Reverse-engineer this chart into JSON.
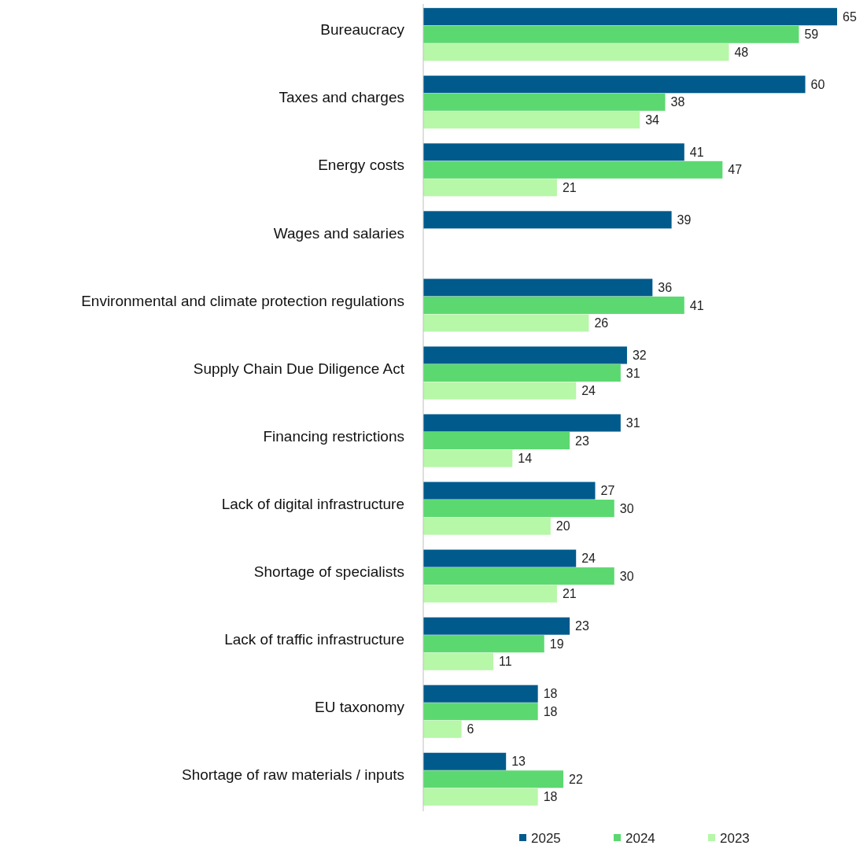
{
  "chart_data": {
    "type": "bar",
    "orientation": "horizontal",
    "categories": [
      "Bureaucracy",
      "Taxes and charges",
      "Energy costs",
      "Wages and salaries",
      "Environmental and climate protection regulations",
      "Supply Chain Due Diligence Act",
      "Financing restrictions",
      "Lack of digital infrastructure",
      "Shortage of specialists",
      "Lack of traffic infrastructure",
      "EU taxonomy",
      "Shortage of raw materials / inputs"
    ],
    "series": [
      {
        "name": "2025",
        "color": "#005a8c",
        "values": [
          65,
          60,
          41,
          39,
          36,
          32,
          31,
          27,
          24,
          23,
          18,
          13
        ]
      },
      {
        "name": "2024",
        "color": "#5cd870",
        "values": [
          59,
          38,
          47,
          null,
          41,
          31,
          23,
          30,
          30,
          19,
          18,
          22
        ]
      },
      {
        "name": "2023",
        "color": "#b6f7a8",
        "values": [
          48,
          34,
          21,
          null,
          26,
          24,
          14,
          20,
          21,
          11,
          6,
          18
        ]
      }
    ],
    "xlim": [
      0,
      65
    ],
    "tick_labels": "y",
    "data_labels": true,
    "legend": "bottom"
  }
}
